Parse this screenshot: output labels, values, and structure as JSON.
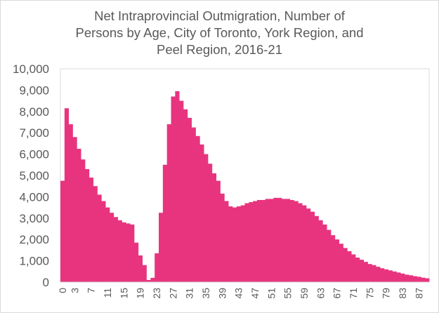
{
  "chart_data": {
    "type": "bar",
    "title": "Net Intraprovincial Outmigration, Number of Persons by Age, City of Toronto, York Region, and Peel Region, 2016-21",
    "title_lines": [
      "Net Intraprovincial Outmigration, Number of",
      "Persons by Age, City of Toronto, York Region, and",
      "Peel Region, 2016-21"
    ],
    "xlabel": "",
    "ylabel": "",
    "color": "#E8347E",
    "ylim": [
      0,
      10000
    ],
    "yticks": [
      0,
      1000,
      2000,
      3000,
      4000,
      5000,
      6000,
      7000,
      8000,
      9000,
      10000
    ],
    "ytick_labels": [
      "0",
      "1,000",
      "2,000",
      "3,000",
      "4,000",
      "5,000",
      "6,000",
      "7,000",
      "8,000",
      "9,000",
      "10,000"
    ],
    "xtick_labels": [
      "0",
      "3",
      "7",
      "11",
      "15",
      "19",
      "23",
      "27",
      "31",
      "35",
      "39",
      "43",
      "47",
      "51",
      "55",
      "59",
      "63",
      "67",
      "71",
      "75",
      "79",
      "83",
      "87"
    ],
    "categories": [
      "0",
      "1",
      "2",
      "3",
      "4",
      "5",
      "6",
      "7",
      "8",
      "9",
      "10",
      "11",
      "12",
      "13",
      "14",
      "15",
      "16",
      "17",
      "18",
      "19",
      "20",
      "21",
      "22",
      "23",
      "24",
      "25",
      "26",
      "27",
      "28",
      "29",
      "30",
      "31",
      "32",
      "33",
      "34",
      "35",
      "36",
      "37",
      "38",
      "39",
      "40",
      "41",
      "42",
      "43",
      "44",
      "45",
      "46",
      "47",
      "48",
      "49",
      "50",
      "51",
      "52",
      "53",
      "54",
      "55",
      "56",
      "57",
      "58",
      "59",
      "60",
      "61",
      "62",
      "63",
      "64",
      "65",
      "66",
      "67",
      "68",
      "69",
      "70",
      "71",
      "72",
      "73",
      "74",
      "75",
      "76",
      "77",
      "78",
      "79",
      "80",
      "81",
      "82",
      "83",
      "84",
      "85",
      "86",
      "87",
      "88",
      "89"
    ],
    "values": [
      4750,
      8150,
      7400,
      6800,
      6250,
      5750,
      5300,
      4900,
      4500,
      4100,
      3800,
      3500,
      3250,
      3050,
      2900,
      2800,
      2750,
      2700,
      1850,
      1250,
      800,
      100,
      200,
      1350,
      3250,
      5500,
      7400,
      8700,
      8950,
      8500,
      8100,
      7700,
      7250,
      6850,
      6450,
      6000,
      5550,
      5100,
      4750,
      4150,
      3800,
      3550,
      3500,
      3550,
      3600,
      3700,
      3750,
      3800,
      3850,
      3850,
      3900,
      3900,
      3950,
      3950,
      3900,
      3900,
      3850,
      3800,
      3700,
      3600,
      3450,
      3300,
      3100,
      2900,
      2700,
      2450,
      2200,
      2000,
      1800,
      1600,
      1450,
      1300,
      1150,
      1050,
      950,
      850,
      800,
      720,
      650,
      600,
      550,
      500,
      450,
      400,
      350,
      320,
      280,
      250,
      210,
      180
    ]
  }
}
